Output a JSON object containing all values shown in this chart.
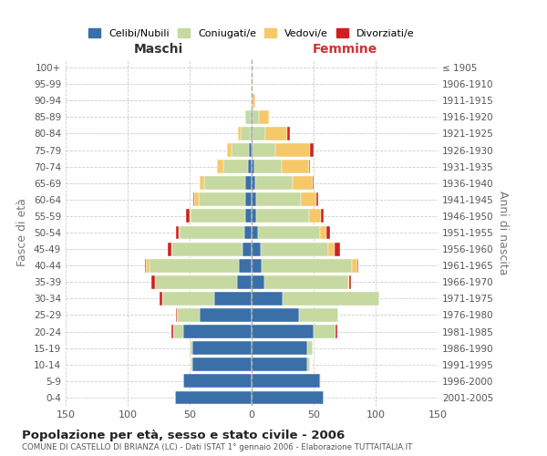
{
  "age_groups": [
    "0-4",
    "5-9",
    "10-14",
    "15-19",
    "20-24",
    "25-29",
    "30-34",
    "35-39",
    "40-44",
    "45-49",
    "50-54",
    "55-59",
    "60-64",
    "65-69",
    "70-74",
    "75-79",
    "80-84",
    "85-89",
    "90-94",
    "95-99",
    "100+"
  ],
  "birth_years": [
    "2001-2005",
    "1996-2000",
    "1991-1995",
    "1986-1990",
    "1981-1985",
    "1976-1980",
    "1971-1975",
    "1966-1970",
    "1961-1965",
    "1956-1960",
    "1951-1955",
    "1946-1950",
    "1941-1945",
    "1936-1940",
    "1931-1935",
    "1926-1930",
    "1921-1925",
    "1916-1920",
    "1911-1915",
    "1906-1910",
    "≤ 1905"
  ],
  "male": {
    "celibi": [
      62,
      55,
      48,
      48,
      55,
      42,
      30,
      12,
      10,
      7,
      6,
      5,
      5,
      5,
      3,
      2,
      1,
      1,
      0,
      0,
      0
    ],
    "coniugati": [
      0,
      0,
      1,
      2,
      8,
      18,
      42,
      66,
      72,
      58,
      52,
      44,
      38,
      33,
      20,
      14,
      8,
      4,
      1,
      0,
      0
    ],
    "vedovi": [
      0,
      0,
      0,
      0,
      0,
      0,
      0,
      0,
      3,
      0,
      1,
      1,
      3,
      4,
      5,
      4,
      2,
      0,
      0,
      0,
      0
    ],
    "divorziati": [
      0,
      0,
      0,
      0,
      2,
      1,
      2,
      3,
      1,
      3,
      2,
      3,
      1,
      0,
      0,
      0,
      0,
      0,
      0,
      0,
      0
    ]
  },
  "female": {
    "nubili": [
      58,
      55,
      45,
      45,
      50,
      38,
      25,
      10,
      8,
      7,
      5,
      4,
      4,
      3,
      2,
      1,
      1,
      1,
      0,
      0,
      0
    ],
    "coniugate": [
      0,
      1,
      2,
      4,
      18,
      32,
      78,
      68,
      73,
      55,
      50,
      42,
      36,
      30,
      22,
      18,
      10,
      5,
      1,
      0,
      0
    ],
    "vedove": [
      0,
      0,
      0,
      0,
      0,
      0,
      0,
      1,
      4,
      5,
      5,
      10,
      12,
      16,
      22,
      28,
      18,
      8,
      2,
      1,
      0
    ],
    "divorziate": [
      0,
      0,
      0,
      0,
      1,
      0,
      0,
      1,
      1,
      4,
      3,
      2,
      2,
      1,
      1,
      3,
      2,
      0,
      0,
      0,
      0
    ]
  },
  "colors": {
    "celibi": "#3a6fa8",
    "coniugati": "#c5d9a0",
    "vedovi": "#f5c96a",
    "divorziati": "#cc2222"
  },
  "xlim": 150,
  "title": "Popolazione per età, sesso e stato civile - 2006",
  "subtitle": "COMUNE DI CASTELLO DI BRIANZA (LC) - Dati ISTAT 1° gennaio 2006 - Elaborazione TUTTAITALIA.IT",
  "ylabel": "Fasce di età",
  "y2label": "Anni di nascita",
  "xlabel_left": "Maschi",
  "xlabel_right": "Femmine"
}
